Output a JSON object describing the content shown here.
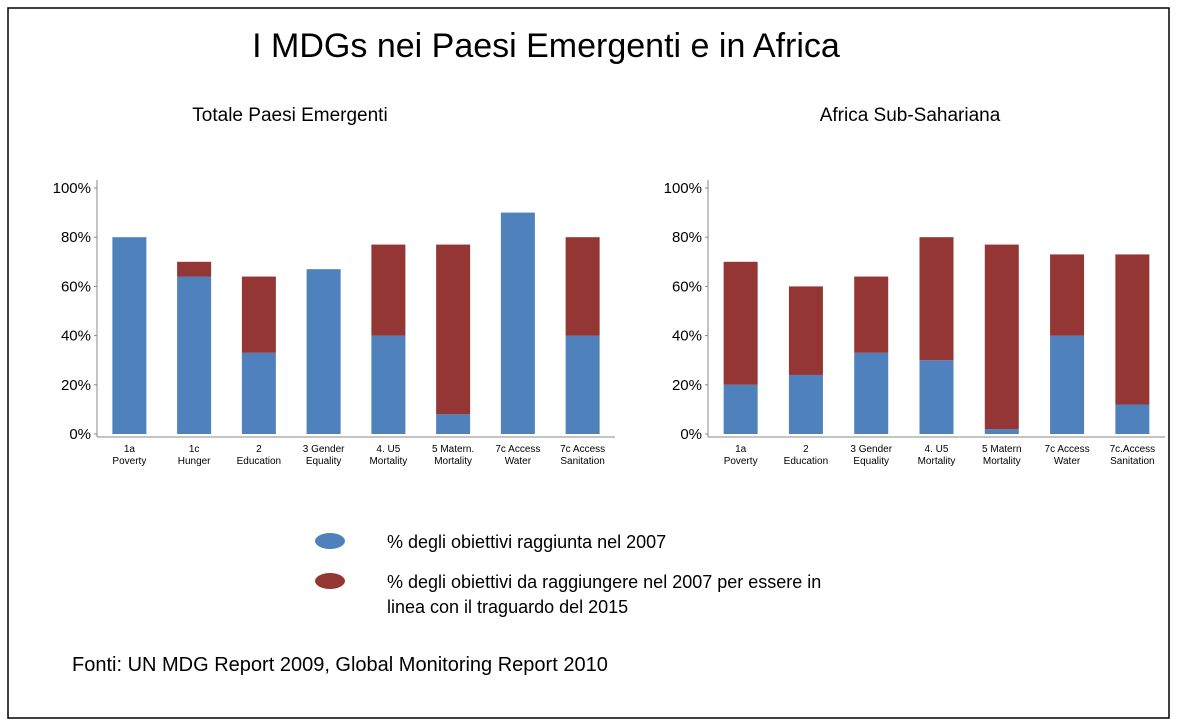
{
  "title": "I MDGs nei Paesi Emergenti e in Africa",
  "source": "Fonti:  UN MDG Report 2009, Global Monitoring Report 2010",
  "chart_data": [
    {
      "type": "bar",
      "stacked": true,
      "title": "Totale Paesi Emergenti",
      "categories": [
        "1a\nPoverty",
        "1c\nHunger",
        "2\nEducation",
        "3 Gender\nEquality",
        "4. U5\nMortality",
        "5 Matern.\nMortality",
        "7c Access\nWater",
        "7c Access\nSanitation"
      ],
      "series": [
        {
          "name": "% degli obiettivi raggiunta nel 2007",
          "color": "#4f81bd",
          "values": [
            80,
            64,
            33,
            67,
            40,
            8,
            90,
            40
          ]
        },
        {
          "name": "% degli obiettivi da raggiungere nel 2007 per essere in\nlinea con il traguardo del 2015",
          "color": "#943634",
          "values": [
            0,
            6,
            31,
            0,
            37,
            69,
            0,
            40
          ]
        }
      ],
      "ylim": [
        0,
        100
      ],
      "yticks": [
        {
          "value": 0,
          "label": "0%"
        },
        {
          "value": 20,
          "label": "20%"
        },
        {
          "value": 40,
          "label": "40%"
        },
        {
          "value": 60,
          "label": "60%"
        },
        {
          "value": 80,
          "label": "80%"
        },
        {
          "value": 100,
          "label": "100%"
        }
      ]
    },
    {
      "type": "bar",
      "stacked": true,
      "title": "Africa Sub-Sahariana",
      "categories": [
        "1a\nPoverty",
        "2\nEducation",
        "3 Gender\nEquality",
        "4. U5\nMortality",
        "5 Matern\nMortality",
        "7c Access\nWater",
        "7c.Access\nSanitation"
      ],
      "series": [
        {
          "name": "% degli obiettivi raggiunta nel 2007",
          "color": "#4f81bd",
          "values": [
            20,
            24,
            33,
            30,
            2,
            40,
            12
          ]
        },
        {
          "name": "% degli obiettivi da raggiungere nel 2007 per essere in\nlinea con il traguardo del 2015",
          "color": "#943634",
          "values": [
            50,
            36,
            31,
            50,
            75,
            33,
            61
          ]
        }
      ],
      "ylim": [
        0,
        100
      ],
      "yticks": [
        {
          "value": 0,
          "label": "0%"
        },
        {
          "value": 20,
          "label": "20%"
        },
        {
          "value": 40,
          "label": "40%"
        },
        {
          "value": 60,
          "label": "60%"
        },
        {
          "value": 80,
          "label": "80%"
        },
        {
          "value": 100,
          "label": "100%"
        }
      ]
    }
  ]
}
